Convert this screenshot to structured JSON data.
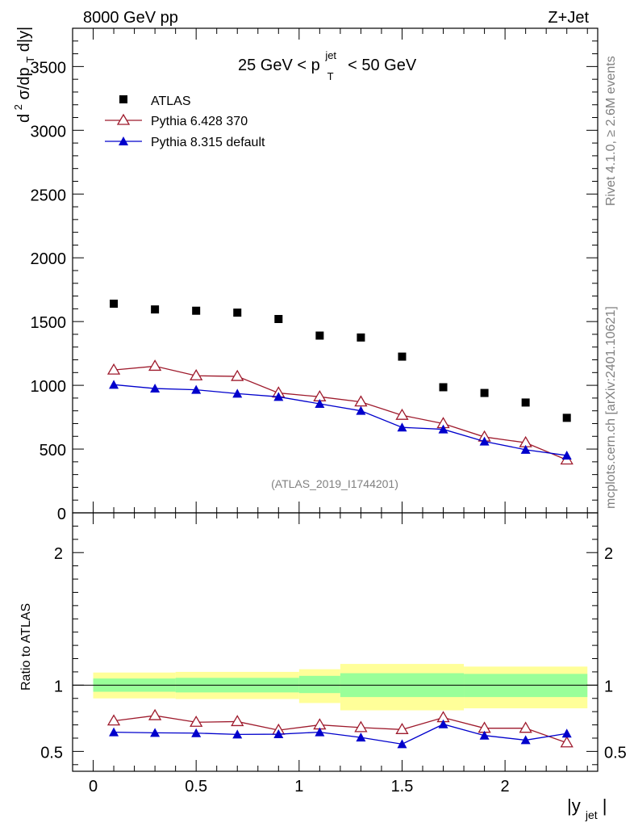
{
  "header": {
    "left": "8000 GeV pp",
    "right": "Z+Jet",
    "side_rivet": "Rivet 4.1.0, ≥ 2.6M events",
    "side_mcplots": "mcplots.cern.ch [arXiv:2401.10621]"
  },
  "chart_data": [
    {
      "type": "scatter",
      "panel": "main",
      "title": "25 GeV < p_T^jet < 50 GeV",
      "title_parts": {
        "pre": "25 GeV < p",
        "sup": "jet",
        "sub": "T",
        "post": "< 50 GeV"
      },
      "ylabel": "d²σ/dp_T d|y|",
      "ylabel_parts": {
        "d": "d",
        "sup": "2",
        "rest": "σ/dp",
        "sub": "T",
        "tail": "d|y|"
      },
      "xlabel": "|y_jet|",
      "xlabel_parts": {
        "main": "|y",
        "sub": "jet",
        "close": "|"
      },
      "xlim": [
        -0.1,
        2.45
      ],
      "ylim": [
        0,
        3800
      ],
      "yticks": [
        0,
        500,
        1000,
        1500,
        2000,
        2500,
        3000,
        3500
      ],
      "ytick_labels": [
        "0",
        "500",
        "1000",
        "1500",
        "2000",
        "2500",
        "3000",
        "3500"
      ],
      "x": [
        0.1,
        0.3,
        0.5,
        0.7,
        0.9,
        1.1,
        1.3,
        1.5,
        1.7,
        1.9,
        2.1,
        2.3
      ],
      "bin_edges": [
        0.0,
        0.2,
        0.4,
        0.6,
        0.8,
        1.0,
        1.2,
        1.4,
        1.6,
        1.8,
        2.0,
        2.2,
        2.4
      ],
      "watermark": "(ATLAS_2019_I1744201)",
      "series": [
        {
          "name": "ATLAS",
          "marker": "square",
          "color": "#000000",
          "values": [
            1640,
            1595,
            1585,
            1570,
            1520,
            1390,
            1375,
            1225,
            985,
            940,
            865,
            745
          ]
        },
        {
          "name": "Pythia 6.428 370",
          "marker": "open-triangle",
          "color": "#9e1a2c",
          "values": [
            1120,
            1150,
            1075,
            1070,
            940,
            910,
            870,
            765,
            700,
            595,
            550,
            415
          ]
        },
        {
          "name": "Pythia 8.315 default",
          "marker": "filled-triangle",
          "color": "#0000cc",
          "values": [
            1005,
            975,
            965,
            935,
            910,
            855,
            800,
            670,
            655,
            560,
            495,
            450
          ]
        }
      ]
    },
    {
      "type": "line",
      "panel": "ratio",
      "ylabel": "Ratio to ATLAS",
      "ylim": [
        0.35,
        2.3
      ],
      "yticks": [
        0.5,
        1,
        2
      ],
      "ytick_labels": [
        "0.5",
        "1",
        "2"
      ],
      "xticks": [
        0,
        0.5,
        1,
        1.5,
        2
      ],
      "xtick_labels": [
        "0",
        "0.5",
        "1",
        "1.5",
        "2"
      ],
      "x": [
        0.1,
        0.3,
        0.5,
        0.7,
        0.9,
        1.1,
        1.3,
        1.5,
        1.7,
        1.9,
        2.1,
        2.3
      ],
      "band_inner": {
        "color": "#99ff99",
        "segments": [
          {
            "x0": 0.0,
            "x1": 0.4,
            "lo": 0.95,
            "hi": 1.05
          },
          {
            "x0": 0.4,
            "x1": 1.0,
            "lo": 0.945,
            "hi": 1.055
          },
          {
            "x0": 1.0,
            "x1": 1.2,
            "lo": 0.94,
            "hi": 1.07
          },
          {
            "x0": 1.2,
            "x1": 1.8,
            "lo": 0.91,
            "hi": 1.09
          },
          {
            "x0": 1.8,
            "x1": 2.4,
            "lo": 0.91,
            "hi": 1.085
          }
        ]
      },
      "band_outer": {
        "color": "#ffff99",
        "segments": [
          {
            "x0": 0.0,
            "x1": 0.4,
            "lo": 0.9,
            "hi": 1.095
          },
          {
            "x0": 0.4,
            "x1": 1.0,
            "lo": 0.895,
            "hi": 1.1
          },
          {
            "x0": 1.0,
            "x1": 1.2,
            "lo": 0.865,
            "hi": 1.12
          },
          {
            "x0": 1.2,
            "x1": 1.8,
            "lo": 0.81,
            "hi": 1.16
          },
          {
            "x0": 1.8,
            "x1": 2.4,
            "lo": 0.825,
            "hi": 1.14
          }
        ]
      },
      "series": [
        {
          "name": "Pythia 6.428 370",
          "marker": "open-triangle",
          "color": "#9e1a2c",
          "values": [
            0.73,
            0.77,
            0.72,
            0.725,
            0.66,
            0.7,
            0.68,
            0.665,
            0.755,
            0.675,
            0.675,
            0.565
          ]
        },
        {
          "name": "Pythia 8.315 default",
          "marker": "filled-triangle",
          "color": "#0000cc",
          "values": [
            0.645,
            0.64,
            0.638,
            0.628,
            0.63,
            0.645,
            0.605,
            0.555,
            0.705,
            0.62,
            0.585,
            0.635
          ]
        }
      ]
    }
  ]
}
